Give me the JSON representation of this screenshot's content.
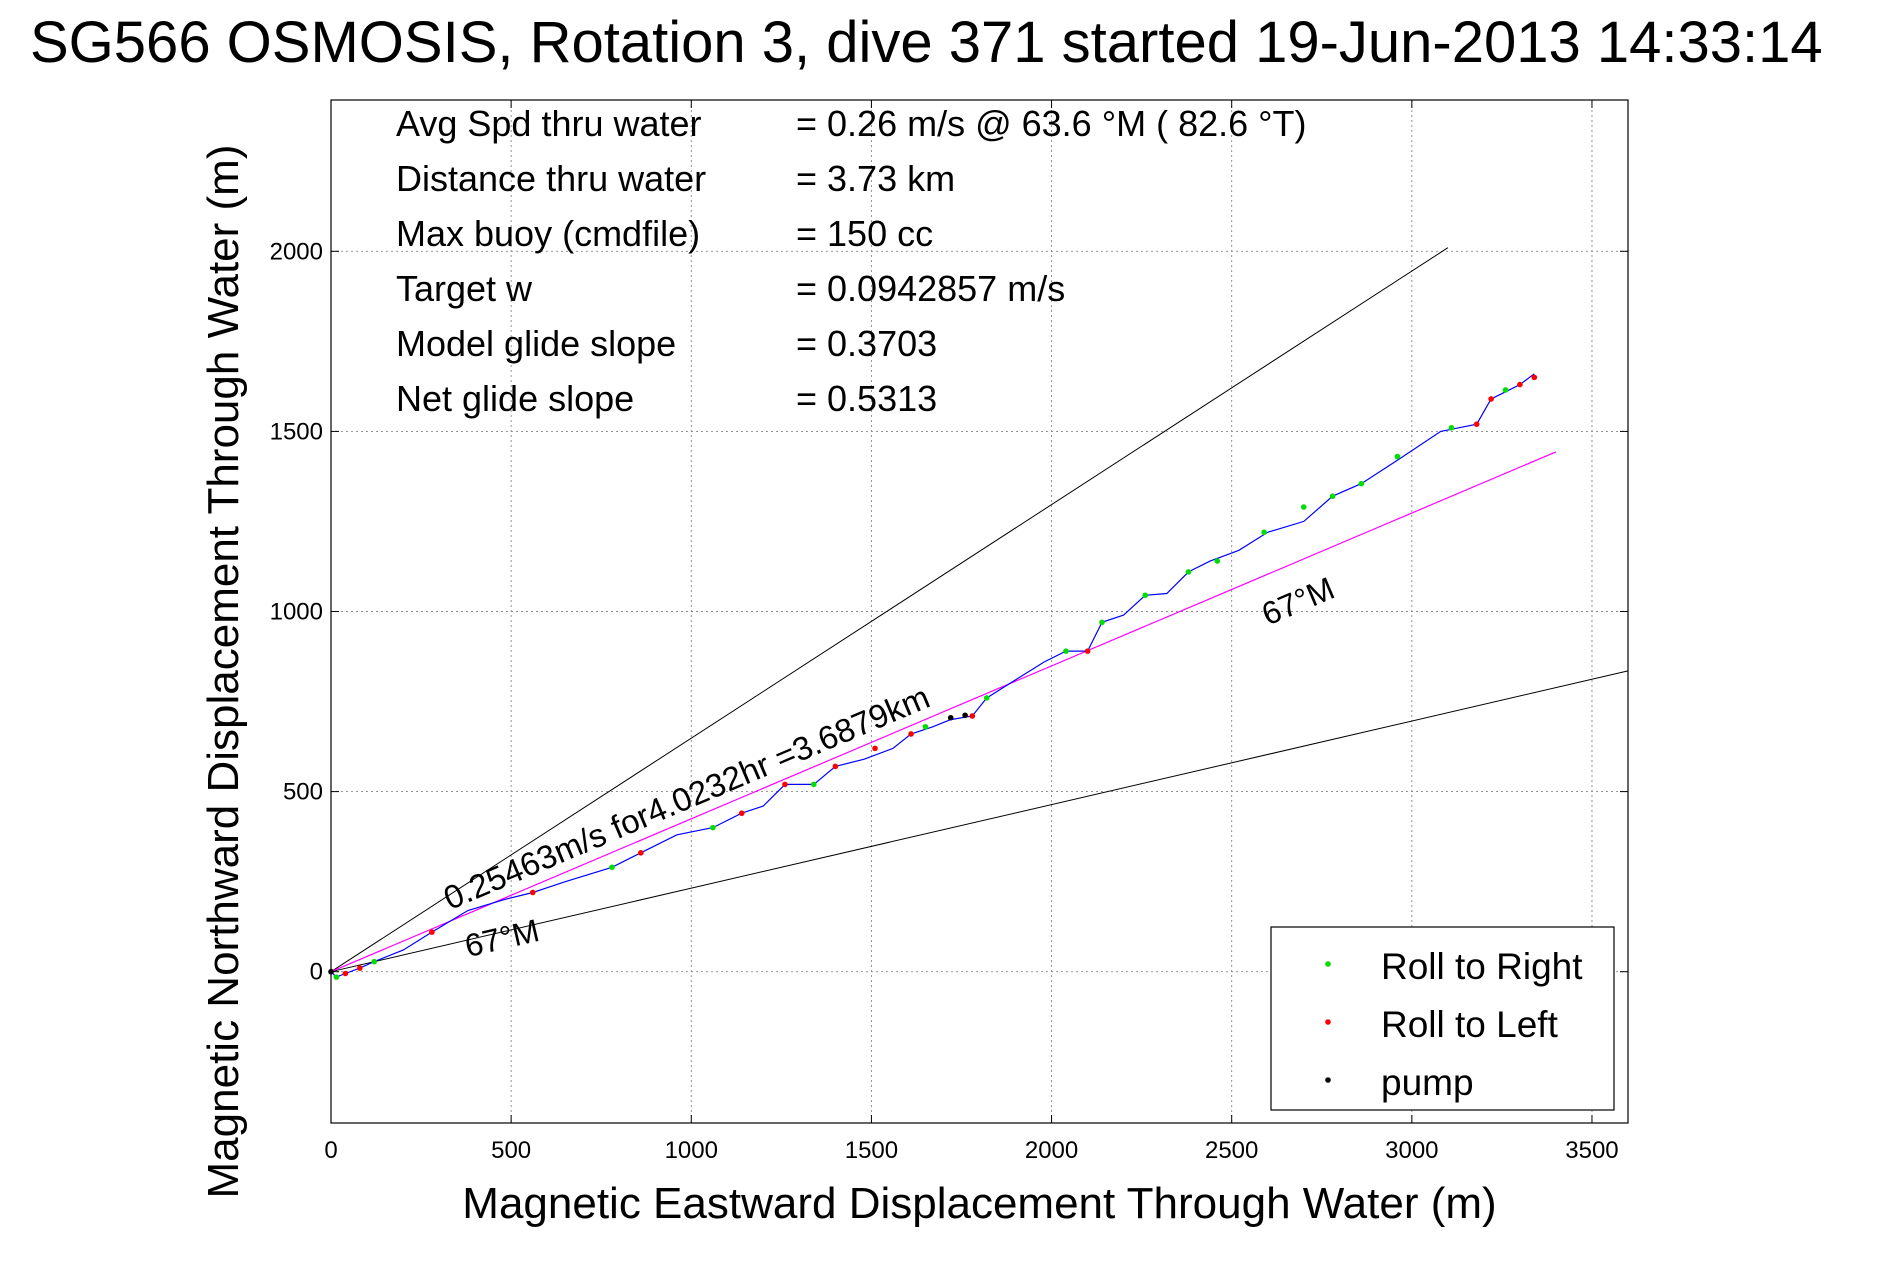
{
  "colors": {
    "track": "#0000ff",
    "roll_right": "#00dd00",
    "roll_left": "#ff0000",
    "pump": "#000000",
    "fit_line": "#ff00ff",
    "bounds": "#000000",
    "grid": "#888888"
  },
  "chart_data": {
    "type": "line",
    "title": "SG566 OSMOSIS, Rotation 3, dive 371 started 19-Jun-2013 14:33:14",
    "xlabel": "Magnetic Eastward Displacement Through Water (m)",
    "ylabel": "Magnetic Northward Displacement Through Water (m)",
    "xlim": [
      0,
      3600
    ],
    "ylim": [
      -420,
      2420
    ],
    "grid": true,
    "legend_position": "bottom-right",
    "x_ticks": [
      "0",
      "500",
      "1000",
      "1500",
      "2000",
      "2500",
      "3000",
      "3500"
    ],
    "y_ticks": [
      "0",
      "500",
      "1000",
      "1500",
      "2000"
    ],
    "x_tick_values": [
      0,
      500,
      1000,
      1500,
      2000,
      2500,
      3000,
      3500
    ],
    "y_tick_values": [
      0,
      500,
      1000,
      1500,
      2000
    ],
    "info_lines": [
      {
        "label": "Avg Spd thru water",
        "value": "=  0.26 m/s @  63.6 °M ( 82.6 °T)"
      },
      {
        "label": "Distance thru water",
        "value": "=  3.73 km"
      },
      {
        "label": "Max buoy (cmdfile)",
        "value": "= 150 cc"
      },
      {
        "label": "Target w",
        "value": "= 0.0942857 m/s"
      },
      {
        "label": "Model glide slope",
        "value": "= 0.3703"
      },
      {
        "label": "Net glide slope",
        "value": "= 0.5313"
      }
    ],
    "annotations": {
      "speed_text": "0.25463m/s for4.0232hr =3.6879km",
      "heading_upper": "67°M",
      "heading_lower": "67°M"
    },
    "legend": [
      {
        "label": "Roll to Right",
        "color_key": "roll_right"
      },
      {
        "label": "Roll to Left",
        "color_key": "roll_left"
      },
      {
        "label": "pump",
        "color_key": "pump"
      }
    ],
    "series": [
      {
        "name": "track",
        "x": [
          0,
          15,
          40,
          80,
          120,
          200,
          280,
          380,
          480,
          560,
          650,
          780,
          860,
          960,
          1060,
          1140,
          1200,
          1260,
          1340,
          1400,
          1480,
          1560,
          1610,
          1670,
          1720,
          1780,
          1820,
          1900,
          1980,
          2040,
          2100,
          2140,
          2200,
          2260,
          2320,
          2380,
          2440,
          2520,
          2600,
          2700,
          2780,
          2860,
          2960,
          3080,
          3130,
          3180,
          3220,
          3260,
          3300,
          3340
        ],
        "y": [
          0,
          -15,
          -5,
          10,
          28,
          60,
          110,
          170,
          200,
          220,
          250,
          290,
          330,
          380,
          400,
          440,
          460,
          520,
          520,
          570,
          590,
          620,
          660,
          680,
          700,
          710,
          760,
          810,
          860,
          890,
          890,
          970,
          990,
          1045,
          1050,
          1110,
          1140,
          1170,
          1220,
          1250,
          1320,
          1355,
          1420,
          1500,
          1510,
          1520,
          1590,
          1610,
          1630,
          1660
        ]
      },
      {
        "name": "fit",
        "x": [
          0,
          3400
        ],
        "y": [
          0,
          1443
        ]
      },
      {
        "name": "bound_upper",
        "x": [
          0,
          3100
        ],
        "y": [
          0,
          2010
        ]
      },
      {
        "name": "bound_lower",
        "x": [
          0,
          3600
        ],
        "y": [
          0,
          835
        ]
      }
    ],
    "roll_right_points": {
      "x": [
        15,
        120,
        780,
        1060,
        1340,
        1650,
        1820,
        2040,
        2140,
        2260,
        2380,
        2460,
        2590,
        2700,
        2780,
        2860,
        2960,
        3110,
        3260
      ],
      "y": [
        -15,
        28,
        290,
        400,
        520,
        680,
        760,
        890,
        970,
        1045,
        1110,
        1140,
        1220,
        1290,
        1320,
        1355,
        1430,
        1510,
        1615
      ]
    },
    "roll_left_points": {
      "x": [
        40,
        80,
        280,
        560,
        860,
        1140,
        1260,
        1400,
        1510,
        1610,
        1780,
        2100,
        3180,
        3220,
        3300,
        3340
      ],
      "y": [
        -5,
        10,
        110,
        220,
        330,
        440,
        520,
        570,
        620,
        660,
        710,
        890,
        1520,
        1590,
        1630,
        1650
      ]
    },
    "pump_points": {
      "x": [
        0,
        1720,
        1760
      ],
      "y": [
        0,
        705,
        712
      ]
    }
  }
}
